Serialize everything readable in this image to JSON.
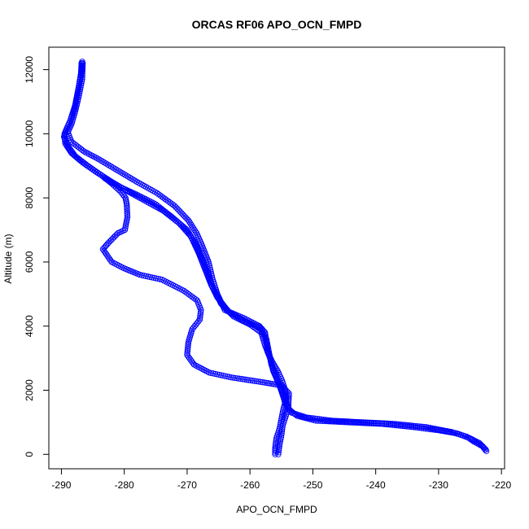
{
  "chart_data": {
    "type": "scatter",
    "title": "ORCAS RF06 APO_OCN_FMPD",
    "xlabel": "APO_OCN_FMPD",
    "ylabel": "Altitude (m)",
    "xlim": [
      -292,
      -219.5
    ],
    "ylim": [
      -450,
      12700
    ],
    "x_ticks": [
      -290,
      -280,
      -270,
      -260,
      -250,
      -240,
      -230,
      -220
    ],
    "y_ticks": [
      0,
      2000,
      4000,
      6000,
      8000,
      10000,
      12000
    ],
    "grid": false,
    "legend": "none",
    "color": "#0000ff",
    "series": [
      {
        "segments": [
          {
            "name_hint": "descent-1",
            "points": [
              [
                -286.8,
                12200
              ],
              [
                -286.9,
                11800
              ],
              [
                -287.4,
                11300
              ],
              [
                -287.9,
                10800
              ],
              [
                -288.6,
                10400
              ],
              [
                -289.3,
                10100
              ],
              [
                -289.6,
                9900
              ],
              [
                -288.9,
                9600
              ],
              [
                -287.8,
                9300
              ],
              [
                -285.8,
                9000
              ],
              [
                -283.6,
                8700
              ],
              [
                -282.0,
                8450
              ],
              [
                -280.6,
                8200
              ],
              [
                -279.8,
                8000
              ],
              [
                -279.6,
                7800
              ],
              [
                -279.5,
                7400
              ],
              [
                -279.9,
                7000
              ],
              [
                -281.0,
                6900
              ],
              [
                -282.5,
                6600
              ],
              [
                -283.4,
                6400
              ],
              [
                -282.0,
                6000
              ],
              [
                -280.0,
                5800
              ],
              [
                -277.5,
                5600
              ],
              [
                -274.0,
                5450
              ],
              [
                -270.5,
                5100
              ],
              [
                -268.4,
                4800
              ],
              [
                -267.8,
                4500
              ],
              [
                -268.0,
                4200
              ],
              [
                -269.2,
                3900
              ],
              [
                -269.8,
                3500
              ],
              [
                -270.0,
                3100
              ],
              [
                -268.9,
                2800
              ],
              [
                -266.5,
                2550
              ],
              [
                -263.0,
                2400
              ],
              [
                -258.0,
                2250
              ],
              [
                -255.0,
                2150
              ],
              [
                -253.8,
                1900
              ],
              [
                -253.9,
                1500
              ],
              [
                -254.3,
                1200
              ],
              [
                -254.8,
                900
              ],
              [
                -255.0,
                600
              ],
              [
                -255.3,
                300
              ],
              [
                -255.5,
                0
              ]
            ]
          },
          {
            "name_hint": "descent-2",
            "points": [
              [
                -286.6,
                12200
              ],
              [
                -286.7,
                11700
              ],
              [
                -287.2,
                11200
              ],
              [
                -287.8,
                10700
              ],
              [
                -288.4,
                10300
              ],
              [
                -289.0,
                10050
              ],
              [
                -288.4,
                9750
              ],
              [
                -286.4,
                9450
              ],
              [
                -284.0,
                9200
              ],
              [
                -281.0,
                8850
              ],
              [
                -278.0,
                8500
              ],
              [
                -274.8,
                8150
              ],
              [
                -272.0,
                7750
              ],
              [
                -269.8,
                7300
              ],
              [
                -268.5,
                6900
              ],
              [
                -267.6,
                6500
              ],
              [
                -266.6,
                6000
              ],
              [
                -266.0,
                5500
              ],
              [
                -265.2,
                5000
              ],
              [
                -264.0,
                4500
              ],
              [
                -261.0,
                4250
              ],
              [
                -258.5,
                4000
              ],
              [
                -257.6,
                3800
              ],
              [
                -257.4,
                3500
              ],
              [
                -257.2,
                3200
              ],
              [
                -256.5,
                2900
              ],
              [
                -255.6,
                2600
              ],
              [
                -254.9,
                2300
              ],
              [
                -254.4,
                2000
              ],
              [
                -254.3,
                1700
              ],
              [
                -254.7,
                1400
              ],
              [
                -255.0,
                1100
              ],
              [
                -255.3,
                800
              ],
              [
                -255.8,
                500
              ],
              [
                -256.0,
                200
              ],
              [
                -256.0,
                0
              ]
            ]
          },
          {
            "name_hint": "ascent-1",
            "points": [
              [
                -222.4,
                100
              ],
              [
                -223.0,
                250
              ],
              [
                -224.4,
                400
              ],
              [
                -225.5,
                550
              ],
              [
                -228.0,
                700
              ],
              [
                -232.0,
                850
              ],
              [
                -237.0,
                950
              ],
              [
                -242.0,
                1000
              ],
              [
                -247.0,
                1050
              ],
              [
                -251.0,
                1150
              ],
              [
                -253.4,
                1300
              ],
              [
                -254.4,
                1600
              ],
              [
                -255.0,
                2000
              ],
              [
                -255.8,
                2400
              ],
              [
                -256.6,
                2800
              ],
              [
                -257.0,
                3200
              ],
              [
                -257.4,
                3600
              ],
              [
                -258.4,
                3950
              ],
              [
                -260.8,
                4150
              ],
              [
                -263.4,
                4450
              ],
              [
                -265.2,
                4900
              ],
              [
                -266.2,
                5300
              ],
              [
                -266.6,
                5600
              ],
              [
                -267.6,
                6100
              ],
              [
                -268.8,
                6600
              ],
              [
                -270.0,
                7000
              ],
              [
                -272.4,
                7400
              ],
              [
                -275.0,
                7800
              ],
              [
                -278.0,
                8100
              ],
              [
                -280.8,
                8350
              ],
              [
                -283.0,
                8600
              ]
            ]
          },
          {
            "name_hint": "ascent-2",
            "points": [
              [
                -222.5,
                150
              ],
              [
                -223.5,
                350
              ],
              [
                -225.0,
                500
              ],
              [
                -227.0,
                650
              ],
              [
                -230.0,
                750
              ],
              [
                -234.0,
                850
              ],
              [
                -239.0,
                950
              ],
              [
                -244.5,
                1000
              ],
              [
                -249.5,
                1050
              ],
              [
                -252.5,
                1200
              ],
              [
                -253.8,
                1400
              ],
              [
                -254.7,
                1800
              ],
              [
                -255.4,
                2200
              ],
              [
                -256.3,
                2600
              ],
              [
                -256.8,
                3000
              ],
              [
                -257.6,
                3400
              ],
              [
                -258.2,
                3800
              ],
              [
                -260.0,
                4050
              ],
              [
                -262.6,
                4300
              ],
              [
                -264.6,
                4700
              ],
              [
                -265.6,
                5100
              ],
              [
                -266.4,
                5400
              ],
              [
                -267.2,
                5800
              ],
              [
                -268.2,
                6300
              ],
              [
                -269.4,
                6800
              ],
              [
                -271.2,
                7200
              ],
              [
                -273.8,
                7600
              ],
              [
                -276.6,
                7900
              ],
              [
                -279.4,
                8200
              ],
              [
                -282.0,
                8500
              ],
              [
                -284.4,
                8800
              ],
              [
                -286.6,
                9100
              ],
              [
                -288.4,
                9400
              ],
              [
                -289.4,
                9700
              ],
              [
                -289.5,
                10000
              ],
              [
                -288.6,
                10400
              ],
              [
                -287.8,
                10900
              ],
              [
                -287.2,
                11500
              ],
              [
                -286.8,
                12000
              ],
              [
                -286.7,
                12250
              ]
            ]
          }
        ]
      }
    ]
  }
}
